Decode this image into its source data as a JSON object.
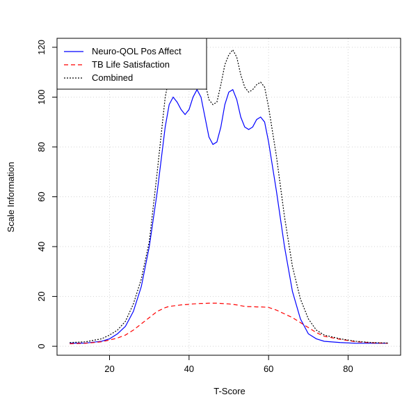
{
  "chart_data": {
    "type": "line",
    "x_label": "T-Score",
    "y_label": "Scale Information",
    "x": [
      10,
      14,
      18,
      20,
      22,
      24,
      26,
      28,
      30,
      32,
      34,
      35,
      36,
      37,
      38,
      39,
      40,
      41,
      42,
      43,
      44,
      45,
      46,
      47,
      48,
      49,
      50,
      51,
      52,
      53,
      54,
      55,
      56,
      57,
      58,
      59,
      60,
      62,
      64,
      66,
      68,
      70,
      72,
      74,
      78,
      82,
      86,
      90
    ],
    "series": [
      {
        "name": "Neuro-QOL Pos Affect",
        "color": "#0000ff",
        "dash": "solid",
        "values": [
          1.2,
          1.3,
          2,
          3,
          5,
          8,
          14,
          24,
          40,
          62,
          88,
          97,
          100,
          98,
          95,
          93,
          95,
          100,
          103,
          100,
          92,
          84,
          81,
          82,
          88,
          97,
          102,
          103,
          99,
          92,
          88,
          87,
          88,
          91,
          92,
          90,
          82,
          62,
          40,
          22,
          11,
          5,
          3,
          2,
          1.5,
          1.2,
          1.2,
          1.2
        ]
      },
      {
        "name": "TB Life Satisfaction",
        "color": "#ff0000",
        "dash": "dashed",
        "values": [
          1,
          1.2,
          1.8,
          2.5,
          3.3,
          4.5,
          6.5,
          9,
          11.5,
          14,
          15.5,
          16,
          16.2,
          16.4,
          16.6,
          16.7,
          16.8,
          17,
          17.1,
          17.2,
          17.2,
          17.3,
          17.3,
          17.3,
          17.2,
          17.1,
          17,
          16.8,
          16.6,
          16.3,
          16,
          15.9,
          15.9,
          15.8,
          15.8,
          15.7,
          15.6,
          14.5,
          13,
          11.5,
          9.5,
          7.5,
          5.5,
          4,
          2.8,
          1.8,
          1.4,
          1.2
        ]
      },
      {
        "name": "Combined",
        "color": "#000000",
        "dash": "dotted",
        "values": [
          1.5,
          1.8,
          3,
          4.5,
          6.5,
          10,
          17,
          27,
          42,
          70,
          100,
          108,
          113,
          111,
          108,
          107,
          110,
          114,
          115,
          112,
          106,
          99,
          97,
          98,
          105,
          113,
          117,
          119,
          116,
          109,
          104,
          102,
          103,
          105,
          106,
          104,
          96,
          76,
          52,
          32,
          19,
          11,
          6.5,
          4.5,
          3,
          2,
          1.5,
          1.3
        ]
      }
    ],
    "xlim": [
      6.8,
      93.2
    ],
    "ylim": [
      -3.6,
      123.6
    ],
    "xticks": [
      20,
      40,
      60,
      80
    ],
    "yticks": [
      0,
      20,
      40,
      60,
      80,
      100,
      120
    ],
    "grid": true,
    "legend": "top-left"
  }
}
